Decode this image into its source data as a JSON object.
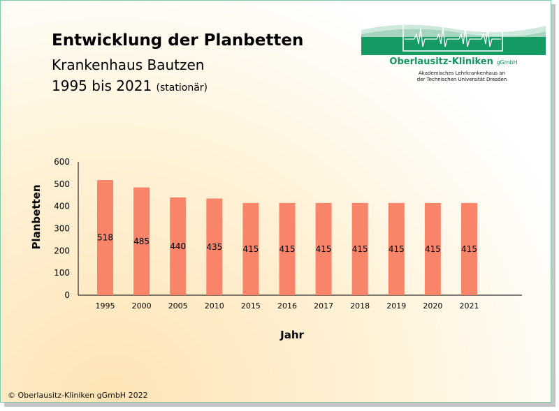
{
  "header": {
    "title": "Entwicklung der Planbetten",
    "subtitle": "Krankenhaus Bautzen",
    "period": "1995 bis 2021",
    "period_note": "(stationär)"
  },
  "logo": {
    "name": "Oberlausitz-Kliniken",
    "suffix": "gGmbH",
    "tagline_1": "Akademisches Lehrkrankenhaus an",
    "tagline_2": "der Technischen Universität Dresden"
  },
  "chart_data": {
    "type": "bar",
    "categories": [
      "1995",
      "2000",
      "2005",
      "2010",
      "2015",
      "2016",
      "2017",
      "2018",
      "2019",
      "2020",
      "2021"
    ],
    "values": [
      518,
      485,
      440,
      435,
      415,
      415,
      415,
      415,
      415,
      415,
      415
    ],
    "xlabel": "Jahr",
    "ylabel": "Planbetten",
    "ylim": [
      0,
      600
    ],
    "yticks": [
      "0",
      "100",
      "200",
      "300",
      "400",
      "500",
      "600"
    ],
    "bar_color": "#f8846a",
    "grid": false,
    "data_labels": true
  },
  "footer": {
    "copyright": "© Oberlausitz-Kliniken gGmbH 2022"
  },
  "colors": {
    "brand_green": "#14935e",
    "frame_border": "#7fc9a7"
  }
}
